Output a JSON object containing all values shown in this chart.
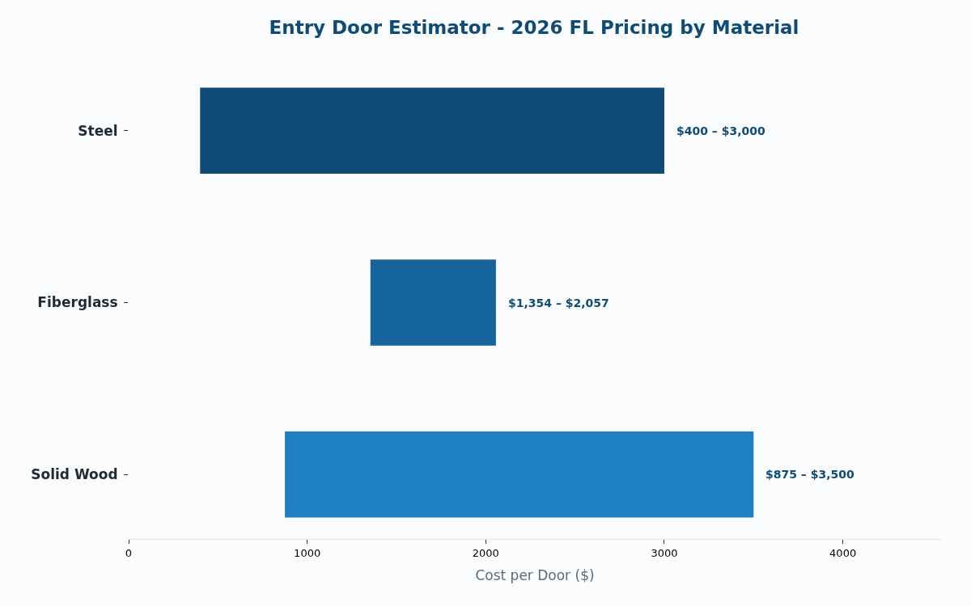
{
  "chart_data": {
    "type": "bar",
    "orientation": "horizontal",
    "title": "Entry Door Estimator - 2026 FL Pricing by Material",
    "xlabel": "Cost per Door ($)",
    "categories": [
      "Steel",
      "Fiberglass",
      "Solid Wood"
    ],
    "base": [
      400,
      1354,
      875
    ],
    "values": [
      2600,
      703,
      2625
    ],
    "colors": [
      "#0f4c75",
      "#15659c",
      "#1e7fc1"
    ],
    "annotations": [
      {
        "text": "$400 – $3,000",
        "x": 3000,
        "y": "Steel"
      },
      {
        "text": "$1,354 – $2,057",
        "x": 2057,
        "y": "Fiberglass"
      },
      {
        "text": "$875 – $3,500",
        "x": 3500,
        "y": "Solid Wood"
      }
    ],
    "xlim": [
      0,
      4550
    ],
    "xticks": [
      0,
      1000,
      2000,
      3000,
      4000
    ]
  }
}
